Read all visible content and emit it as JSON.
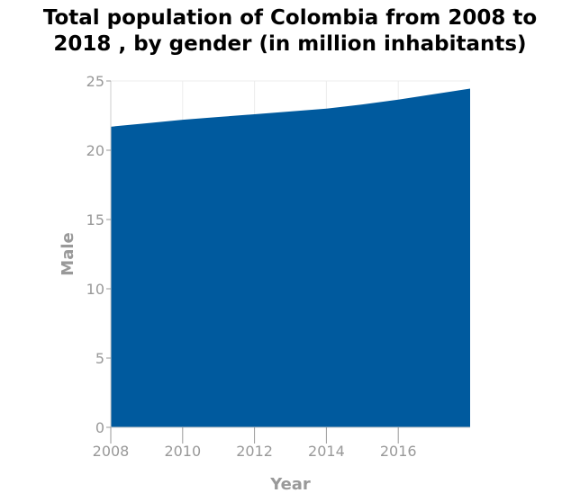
{
  "chart_data": {
    "type": "area",
    "title_lines": [
      "Total population of Colombia from 2008 to",
      "2018 , by gender (in million inhabitants)"
    ],
    "xlabel": "Year",
    "ylabel": "Male",
    "x": [
      2008,
      2009,
      2010,
      2011,
      2012,
      2013,
      2014,
      2015,
      2016,
      2017,
      2018
    ],
    "values": [
      21.7,
      21.95,
      22.2,
      22.4,
      22.6,
      22.8,
      23.0,
      23.3,
      23.65,
      24.05,
      24.45
    ],
    "xticks": [
      "2008",
      "2010",
      "2012",
      "2014",
      "2016"
    ],
    "yticks": [
      "0",
      "5",
      "10",
      "15",
      "20",
      "25"
    ],
    "xlim": [
      2008,
      2018
    ],
    "ylim": [
      0,
      25
    ],
    "grid": true,
    "color": "#005a9e"
  }
}
